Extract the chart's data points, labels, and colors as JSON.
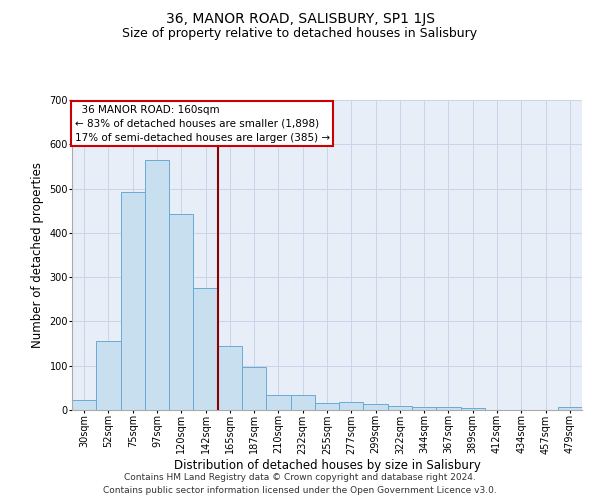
{
  "title": "36, MANOR ROAD, SALISBURY, SP1 1JS",
  "subtitle": "Size of property relative to detached houses in Salisbury",
  "xlabel": "Distribution of detached houses by size in Salisbury",
  "ylabel": "Number of detached properties",
  "footer1": "Contains HM Land Registry data © Crown copyright and database right 2024.",
  "footer2": "Contains public sector information licensed under the Open Government Licence v3.0.",
  "annotation_line1": "  36 MANOR ROAD: 160sqm",
  "annotation_line2": "← 83% of detached houses are smaller (1,898)",
  "annotation_line3": "17% of semi-detached houses are larger (385) →",
  "bar_labels": [
    "30sqm",
    "52sqm",
    "75sqm",
    "97sqm",
    "120sqm",
    "142sqm",
    "165sqm",
    "187sqm",
    "210sqm",
    "232sqm",
    "255sqm",
    "277sqm",
    "299sqm",
    "322sqm",
    "344sqm",
    "367sqm",
    "389sqm",
    "412sqm",
    "434sqm",
    "457sqm",
    "479sqm"
  ],
  "bar_values": [
    22,
    155,
    492,
    565,
    443,
    275,
    145,
    98,
    35,
    33,
    15,
    17,
    13,
    10,
    6,
    6,
    5,
    1,
    1,
    1,
    6
  ],
  "bar_color": "#c8dff0",
  "bar_edge_color": "#6aaad4",
  "vline_color": "#8b0000",
  "vline_x": 5.5,
  "ylim": [
    0,
    700
  ],
  "yticks": [
    0,
    100,
    200,
    300,
    400,
    500,
    600,
    700
  ],
  "grid_color": "#c8d4e8",
  "bg_color": "#e8eef8",
  "annotation_box_facecolor": "#ffffff",
  "annotation_box_edgecolor": "#cc0000",
  "title_fontsize": 10,
  "subtitle_fontsize": 9,
  "axis_label_fontsize": 8.5,
  "tick_fontsize": 7,
  "annotation_fontsize": 7.5,
  "footer_fontsize": 6.5
}
